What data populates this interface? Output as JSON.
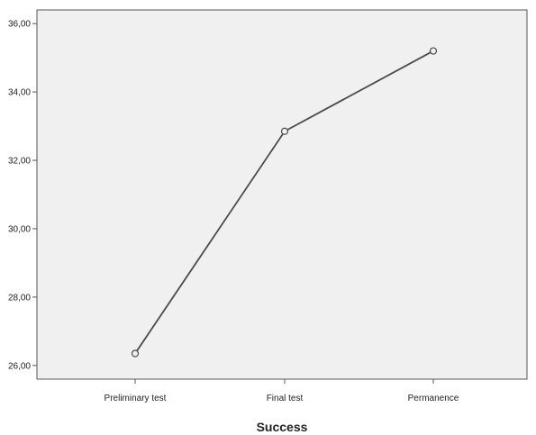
{
  "chart_data": {
    "type": "line",
    "categories": [
      "Preliminary test",
      "Final test",
      "Permanence"
    ],
    "series": [
      {
        "values": [
          26.35,
          32.85,
          35.2
        ]
      }
    ],
    "xlabel": "Success",
    "ylabel": "",
    "ylim": [
      25.6,
      36.4
    ],
    "yticks": [
      26,
      28,
      30,
      32,
      34,
      36
    ],
    "ytick_labels": [
      "26,00",
      "28,00",
      "30,00",
      "32,00",
      "34,00",
      "36,00"
    ],
    "grid": false,
    "colors": {
      "plot_background": "#f0f0f0",
      "line": "#4a4a4a",
      "axis": "#555555"
    }
  }
}
